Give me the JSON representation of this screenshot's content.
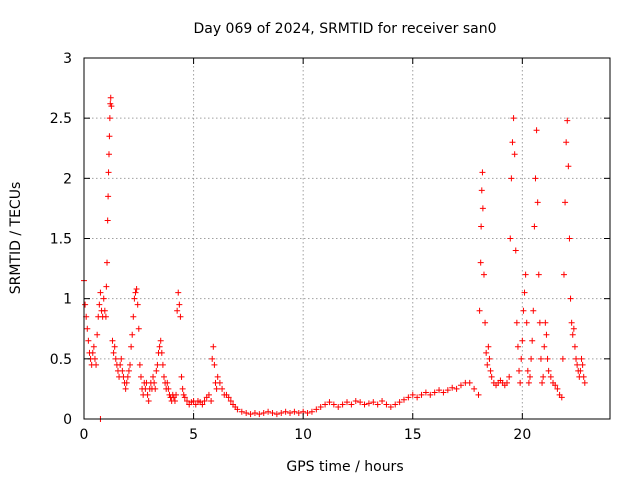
{
  "chart_data": {
    "type": "scatter",
    "title": "Day 069 of 2024, SRMTID for receiver san0",
    "xlabel": "GPS time / hours",
    "ylabel": "SRMTID / TECUs",
    "xlim": [
      0,
      24
    ],
    "ylim": [
      0,
      3
    ],
    "xticks": [
      0,
      5,
      10,
      15,
      20
    ],
    "yticks": [
      0,
      0.5,
      1,
      1.5,
      2,
      2.5,
      3
    ],
    "xtick_labels": [
      "0",
      "5",
      "10",
      "15",
      "20"
    ],
    "ytick_labels": [
      "0",
      "0.5",
      "1",
      "1.5",
      "2",
      "2.5",
      "3"
    ],
    "grid": true,
    "marker": "+",
    "color": "#ff0000",
    "series": [
      {
        "name": "SRMTID",
        "points": [
          [
            0.0,
            1.15
          ],
          [
            0.05,
            0.95
          ],
          [
            0.1,
            0.85
          ],
          [
            0.15,
            0.75
          ],
          [
            0.2,
            0.65
          ],
          [
            0.25,
            0.55
          ],
          [
            0.3,
            0.5
          ],
          [
            0.35,
            0.45
          ],
          [
            0.4,
            0.55
          ],
          [
            0.45,
            0.6
          ],
          [
            0.5,
            0.5
          ],
          [
            0.55,
            0.45
          ],
          [
            0.6,
            0.7
          ],
          [
            0.65,
            0.85
          ],
          [
            0.7,
            0.95
          ],
          [
            0.75,
            1.05
          ],
          [
            0.8,
            0.9
          ],
          [
            0.85,
            0.85
          ],
          [
            0.9,
            1.0
          ],
          [
            0.95,
            0.9
          ],
          [
            1.0,
            0.85
          ],
          [
            1.02,
            1.1
          ],
          [
            1.05,
            1.3
          ],
          [
            1.08,
            1.65
          ],
          [
            1.1,
            1.85
          ],
          [
            1.12,
            2.05
          ],
          [
            1.14,
            2.2
          ],
          [
            1.16,
            2.35
          ],
          [
            1.18,
            2.5
          ],
          [
            1.2,
            2.62
          ],
          [
            1.22,
            2.67
          ],
          [
            1.25,
            2.6
          ],
          [
            1.3,
            0.65
          ],
          [
            1.35,
            0.55
          ],
          [
            1.4,
            0.6
          ],
          [
            1.45,
            0.5
          ],
          [
            1.5,
            0.45
          ],
          [
            1.55,
            0.4
          ],
          [
            1.6,
            0.35
          ],
          [
            1.65,
            0.45
          ],
          [
            1.7,
            0.5
          ],
          [
            1.75,
            0.4
          ],
          [
            1.8,
            0.35
          ],
          [
            1.85,
            0.3
          ],
          [
            1.9,
            0.25
          ],
          [
            1.95,
            0.3
          ],
          [
            2.0,
            0.35
          ],
          [
            2.05,
            0.4
          ],
          [
            2.1,
            0.45
          ],
          [
            2.15,
            0.6
          ],
          [
            2.2,
            0.7
          ],
          [
            2.25,
            0.85
          ],
          [
            2.3,
            1.0
          ],
          [
            2.35,
            1.05
          ],
          [
            2.4,
            1.08
          ],
          [
            2.45,
            0.95
          ],
          [
            2.5,
            0.75
          ],
          [
            2.55,
            0.45
          ],
          [
            2.6,
            0.35
          ],
          [
            2.65,
            0.25
          ],
          [
            2.7,
            0.2
          ],
          [
            2.75,
            0.3
          ],
          [
            2.8,
            0.25
          ],
          [
            2.85,
            0.3
          ],
          [
            2.9,
            0.2
          ],
          [
            2.95,
            0.15
          ],
          [
            3.0,
            0.25
          ],
          [
            3.05,
            0.3
          ],
          [
            3.1,
            0.25
          ],
          [
            3.15,
            0.35
          ],
          [
            3.2,
            0.3
          ],
          [
            3.25,
            0.25
          ],
          [
            3.3,
            0.4
          ],
          [
            3.35,
            0.45
          ],
          [
            3.4,
            0.55
          ],
          [
            3.45,
            0.6
          ],
          [
            3.5,
            0.65
          ],
          [
            3.55,
            0.55
          ],
          [
            3.6,
            0.45
          ],
          [
            3.65,
            0.35
          ],
          [
            3.7,
            0.3
          ],
          [
            3.75,
            0.25
          ],
          [
            3.8,
            0.3
          ],
          [
            3.85,
            0.25
          ],
          [
            3.9,
            0.2
          ],
          [
            3.95,
            0.18
          ],
          [
            4.0,
            0.15
          ],
          [
            4.05,
            0.2
          ],
          [
            4.1,
            0.18
          ],
          [
            4.15,
            0.15
          ],
          [
            4.2,
            0.2
          ],
          [
            4.25,
            0.9
          ],
          [
            4.3,
            1.05
          ],
          [
            4.35,
            0.95
          ],
          [
            4.4,
            0.85
          ],
          [
            4.45,
            0.35
          ],
          [
            4.5,
            0.25
          ],
          [
            4.55,
            0.2
          ],
          [
            4.6,
            0.18
          ],
          [
            4.7,
            0.15
          ],
          [
            4.8,
            0.12
          ],
          [
            4.9,
            0.14
          ],
          [
            5.0,
            0.15
          ],
          [
            5.1,
            0.12
          ],
          [
            5.2,
            0.15
          ],
          [
            5.3,
            0.14
          ],
          [
            5.4,
            0.12
          ],
          [
            5.5,
            0.15
          ],
          [
            5.6,
            0.18
          ],
          [
            5.7,
            0.2
          ],
          [
            5.8,
            0.15
          ],
          [
            5.85,
            0.5
          ],
          [
            5.9,
            0.6
          ],
          [
            5.95,
            0.45
          ],
          [
            6.0,
            0.3
          ],
          [
            6.05,
            0.25
          ],
          [
            6.1,
            0.35
          ],
          [
            6.2,
            0.3
          ],
          [
            6.3,
            0.25
          ],
          [
            6.4,
            0.2
          ],
          [
            6.5,
            0.2
          ],
          [
            6.6,
            0.18
          ],
          [
            6.7,
            0.15
          ],
          [
            6.8,
            0.12
          ],
          [
            6.9,
            0.1
          ],
          [
            7.0,
            0.08
          ],
          [
            7.2,
            0.06
          ],
          [
            7.4,
            0.05
          ],
          [
            7.6,
            0.04
          ],
          [
            7.8,
            0.05
          ],
          [
            8.0,
            0.04
          ],
          [
            8.2,
            0.05
          ],
          [
            8.4,
            0.06
          ],
          [
            8.6,
            0.05
          ],
          [
            8.8,
            0.04
          ],
          [
            9.0,
            0.05
          ],
          [
            9.2,
            0.06
          ],
          [
            9.4,
            0.05
          ],
          [
            9.6,
            0.06
          ],
          [
            9.8,
            0.05
          ],
          [
            10.0,
            0.06
          ],
          [
            10.2,
            0.05
          ],
          [
            10.4,
            0.06
          ],
          [
            10.6,
            0.08
          ],
          [
            10.8,
            0.1
          ],
          [
            11.0,
            0.12
          ],
          [
            11.2,
            0.14
          ],
          [
            11.4,
            0.12
          ],
          [
            11.6,
            0.1
          ],
          [
            11.8,
            0.12
          ],
          [
            12.0,
            0.14
          ],
          [
            12.2,
            0.12
          ],
          [
            12.4,
            0.15
          ],
          [
            12.6,
            0.14
          ],
          [
            12.8,
            0.12
          ],
          [
            13.0,
            0.13
          ],
          [
            13.2,
            0.14
          ],
          [
            13.4,
            0.12
          ],
          [
            13.6,
            0.15
          ],
          [
            13.8,
            0.12
          ],
          [
            14.0,
            0.1
          ],
          [
            14.2,
            0.12
          ],
          [
            14.4,
            0.14
          ],
          [
            14.6,
            0.16
          ],
          [
            14.8,
            0.18
          ],
          [
            15.0,
            0.2
          ],
          [
            15.2,
            0.18
          ],
          [
            15.4,
            0.2
          ],
          [
            15.6,
            0.22
          ],
          [
            15.8,
            0.2
          ],
          [
            16.0,
            0.22
          ],
          [
            16.2,
            0.24
          ],
          [
            16.4,
            0.22
          ],
          [
            16.6,
            0.24
          ],
          [
            16.8,
            0.26
          ],
          [
            17.0,
            0.25
          ],
          [
            17.2,
            0.28
          ],
          [
            17.4,
            0.3
          ],
          [
            17.6,
            0.3
          ],
          [
            17.8,
            0.25
          ],
          [
            18.0,
            0.2
          ],
          [
            18.05,
            0.9
          ],
          [
            18.1,
            1.3
          ],
          [
            18.12,
            1.6
          ],
          [
            18.15,
            1.9
          ],
          [
            18.18,
            2.05
          ],
          [
            18.2,
            1.75
          ],
          [
            18.25,
            1.2
          ],
          [
            18.3,
            0.8
          ],
          [
            18.35,
            0.55
          ],
          [
            18.4,
            0.45
          ],
          [
            18.45,
            0.6
          ],
          [
            18.5,
            0.5
          ],
          [
            18.55,
            0.4
          ],
          [
            18.6,
            0.35
          ],
          [
            18.7,
            0.3
          ],
          [
            18.8,
            0.28
          ],
          [
            18.9,
            0.3
          ],
          [
            19.0,
            0.32
          ],
          [
            19.1,
            0.3
          ],
          [
            19.2,
            0.28
          ],
          [
            19.3,
            0.3
          ],
          [
            19.4,
            0.35
          ],
          [
            19.45,
            1.5
          ],
          [
            19.5,
            2.0
          ],
          [
            19.55,
            2.3
          ],
          [
            19.6,
            2.5
          ],
          [
            19.65,
            2.2
          ],
          [
            19.7,
            1.4
          ],
          [
            19.75,
            0.8
          ],
          [
            19.8,
            0.6
          ],
          [
            19.85,
            0.4
          ],
          [
            19.9,
            0.3
          ],
          [
            19.95,
            0.5
          ],
          [
            20.0,
            0.65
          ],
          [
            20.05,
            0.9
          ],
          [
            20.1,
            1.05
          ],
          [
            20.15,
            1.2
          ],
          [
            20.2,
            0.8
          ],
          [
            20.25,
            0.4
          ],
          [
            20.3,
            0.3
          ],
          [
            20.35,
            0.35
          ],
          [
            20.4,
            0.5
          ],
          [
            20.45,
            0.65
          ],
          [
            20.5,
            0.9
          ],
          [
            20.55,
            1.6
          ],
          [
            20.6,
            2.0
          ],
          [
            20.65,
            2.4
          ],
          [
            20.7,
            1.8
          ],
          [
            20.75,
            1.2
          ],
          [
            20.8,
            0.8
          ],
          [
            20.85,
            0.5
          ],
          [
            20.9,
            0.3
          ],
          [
            20.95,
            0.35
          ],
          [
            21.0,
            0.6
          ],
          [
            21.05,
            0.8
          ],
          [
            21.1,
            0.7
          ],
          [
            21.15,
            0.5
          ],
          [
            21.2,
            0.4
          ],
          [
            21.3,
            0.35
          ],
          [
            21.4,
            0.3
          ],
          [
            21.5,
            0.28
          ],
          [
            21.6,
            0.25
          ],
          [
            21.7,
            0.2
          ],
          [
            21.8,
            0.18
          ],
          [
            21.85,
            0.5
          ],
          [
            21.9,
            1.2
          ],
          [
            21.95,
            1.8
          ],
          [
            22.0,
            2.3
          ],
          [
            22.05,
            2.48
          ],
          [
            22.1,
            2.1
          ],
          [
            22.15,
            1.5
          ],
          [
            22.2,
            1.0
          ],
          [
            22.25,
            0.8
          ],
          [
            22.3,
            0.7
          ],
          [
            22.35,
            0.75
          ],
          [
            22.4,
            0.6
          ],
          [
            22.45,
            0.5
          ],
          [
            22.5,
            0.45
          ],
          [
            22.55,
            0.4
          ],
          [
            22.6,
            0.35
          ],
          [
            22.65,
            0.4
          ],
          [
            22.7,
            0.5
          ],
          [
            22.75,
            0.45
          ],
          [
            22.8,
            0.35
          ],
          [
            22.85,
            0.3
          ],
          [
            0.75,
            0.0
          ]
        ]
      }
    ]
  }
}
